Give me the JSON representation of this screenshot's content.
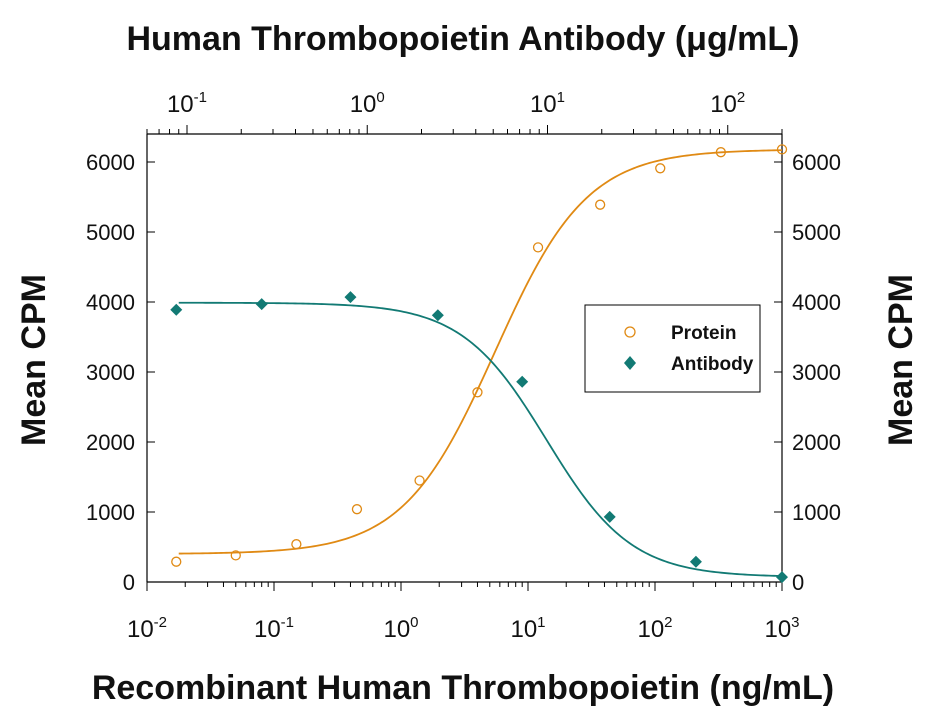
{
  "chart_data": {
    "type": "scatter",
    "title": "Human Thrombopoietin Antibody (μg/mL)",
    "xlabel": "Recombinant Human Thrombopoietin (ng/mL)",
    "ylabel_left": "Mean CPM",
    "ylabel_right": "Mean CPM",
    "x_scale": "log",
    "xlim": [
      0.01,
      1000
    ],
    "ylim": [
      0,
      6400
    ],
    "yticks": [
      0,
      1000,
      2000,
      3000,
      4000,
      5000,
      6000
    ],
    "xticks_bottom": [
      {
        "value": 0.01,
        "base": "10",
        "exp": "-2"
      },
      {
        "value": 0.1,
        "base": "10",
        "exp": "-1"
      },
      {
        "value": 1,
        "base": "10",
        "exp": "0"
      },
      {
        "value": 10,
        "base": "10",
        "exp": "1"
      },
      {
        "value": 100,
        "base": "10",
        "exp": "2"
      },
      {
        "value": 1000,
        "base": "10",
        "exp": "3"
      }
    ],
    "top_axis": {
      "xlim": [
        0.06,
        200
      ],
      "xticks": [
        {
          "value": 0.1,
          "base": "10",
          "exp": "-1"
        },
        {
          "value": 1,
          "base": "10",
          "exp": "0"
        },
        {
          "value": 10,
          "base": "10",
          "exp": "1"
        },
        {
          "value": 100,
          "base": "10",
          "exp": "2"
        }
      ]
    },
    "legend": {
      "placement": "right-center"
    },
    "series": [
      {
        "name": "Protein",
        "color": "#E08A14",
        "marker": "open-circle",
        "points": [
          {
            "x": 0.017,
            "y": 290
          },
          {
            "x": 0.05,
            "y": 380
          },
          {
            "x": 0.15,
            "y": 540
          },
          {
            "x": 0.45,
            "y": 1040
          },
          {
            "x": 1.4,
            "y": 1450
          },
          {
            "x": 4.0,
            "y": 2710
          },
          {
            "x": 12.0,
            "y": 4780
          },
          {
            "x": 37.0,
            "y": 5390
          },
          {
            "x": 110.0,
            "y": 5910
          },
          {
            "x": 330.0,
            "y": 6140
          },
          {
            "x": 1000.0,
            "y": 6180
          }
        ],
        "fit": {
          "bottom": 400,
          "top": 6180,
          "ec50": 5.5,
          "hill": 1.2
        }
      },
      {
        "name": "Antibody",
        "color": "#127A74",
        "marker": "filled-diamond",
        "points": [
          {
            "x": 0.017,
            "y": 3890
          },
          {
            "x": 0.08,
            "y": 3970
          },
          {
            "x": 0.4,
            "y": 4070
          },
          {
            "x": 1.95,
            "y": 3810
          },
          {
            "x": 9.0,
            "y": 2860
          },
          {
            "x": 44.0,
            "y": 930
          },
          {
            "x": 210.0,
            "y": 290
          },
          {
            "x": 1000.0,
            "y": 70
          }
        ],
        "fit": {
          "bottom": 70,
          "top": 3990,
          "ec50": 14.0,
          "hill": 1.3
        }
      }
    ]
  }
}
